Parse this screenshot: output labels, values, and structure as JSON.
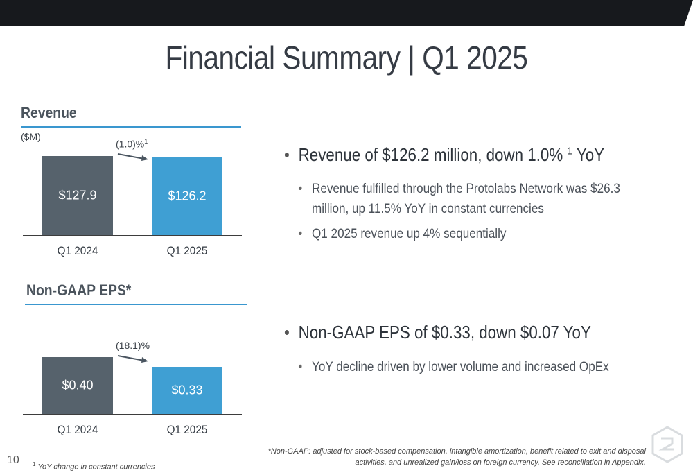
{
  "slide": {
    "title": "Financial Summary | Q1 2025",
    "page_number": "10"
  },
  "revenue": {
    "section_title": "Revenue",
    "unit": "($M)",
    "change_label": "(1.0)%",
    "change_sup": "1"
  },
  "eps": {
    "section_title": "Non-GAAP EPS*",
    "change_label": "(18.1)%"
  },
  "chart_data": [
    {
      "type": "bar",
      "title": "Revenue",
      "ylabel": "($M)",
      "categories": [
        "Q1 2024",
        "Q1 2025"
      ],
      "values": [
        127.9,
        126.2
      ],
      "labels": [
        "$127.9",
        "$126.2"
      ],
      "colors": [
        "#56626c",
        "#3f9fd3"
      ]
    },
    {
      "type": "bar",
      "title": "Non-GAAP EPS*",
      "categories": [
        "Q1 2024",
        "Q1 2025"
      ],
      "values": [
        0.4,
        0.33
      ],
      "labels": [
        "$0.40",
        "$0.33"
      ],
      "colors": [
        "#56626c",
        "#3f9fd3"
      ]
    }
  ],
  "bullets": {
    "revenue_main": "Revenue of $126.2 million, down 1.0%",
    "revenue_main_sup": "1",
    "revenue_main_tail": "YoY",
    "revenue_sub": [
      "Revenue fulfilled through the Protolabs Network was $26.3 million, up 11.5% YoY in constant currencies",
      "Q1 2025 revenue up 4% sequentially"
    ],
    "eps_main": "Non-GAAP EPS of $0.33, down $0.07 YoY",
    "eps_sub": [
      "YoY decline driven by lower volume and increased OpEx"
    ]
  },
  "footnotes": {
    "non_gaap": "*Non-GAAP: adjusted for stock-based compensation, intangible amortization, benefit related to exit and disposal activities, and unrealized gain/loss on foreign currency. See reconciliation in Appendix.",
    "yoy_sup": "1",
    "yoy": "YoY change in constant currencies"
  },
  "icons": {
    "bullet": "bullet-dot-icon",
    "logo": "protolabs-logo-icon",
    "arrow": "arrow-right-icon"
  }
}
